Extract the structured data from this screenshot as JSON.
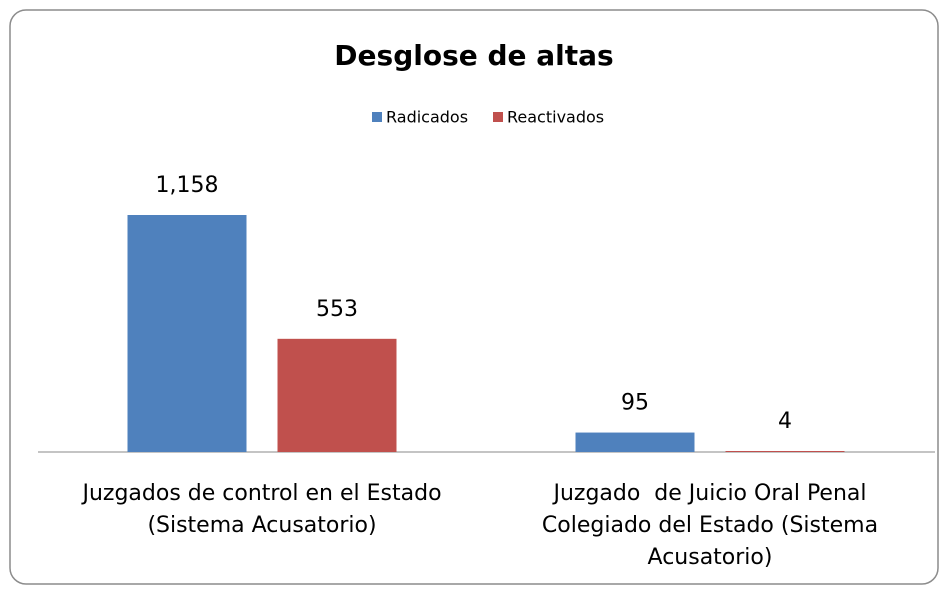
{
  "chart_data": {
    "type": "bar",
    "title": "Desglose de altas",
    "categories": [
      "Juzgados de control en el Estado (Sistema Acusatorio)",
      "Juzgado  de Juicio Oral Penal Colegiado del Estado (Sistema Acusatorio)"
    ],
    "series": [
      {
        "name": "Radicados",
        "color": "#4f81bd",
        "values": [
          1158,
          95
        ],
        "value_labels": [
          "1,158",
          "95"
        ]
      },
      {
        "name": "Reactivados",
        "color": "#c0504d",
        "values": [
          553,
          4
        ],
        "value_labels": [
          "553",
          "4"
        ]
      }
    ],
    "legend": "top"
  }
}
